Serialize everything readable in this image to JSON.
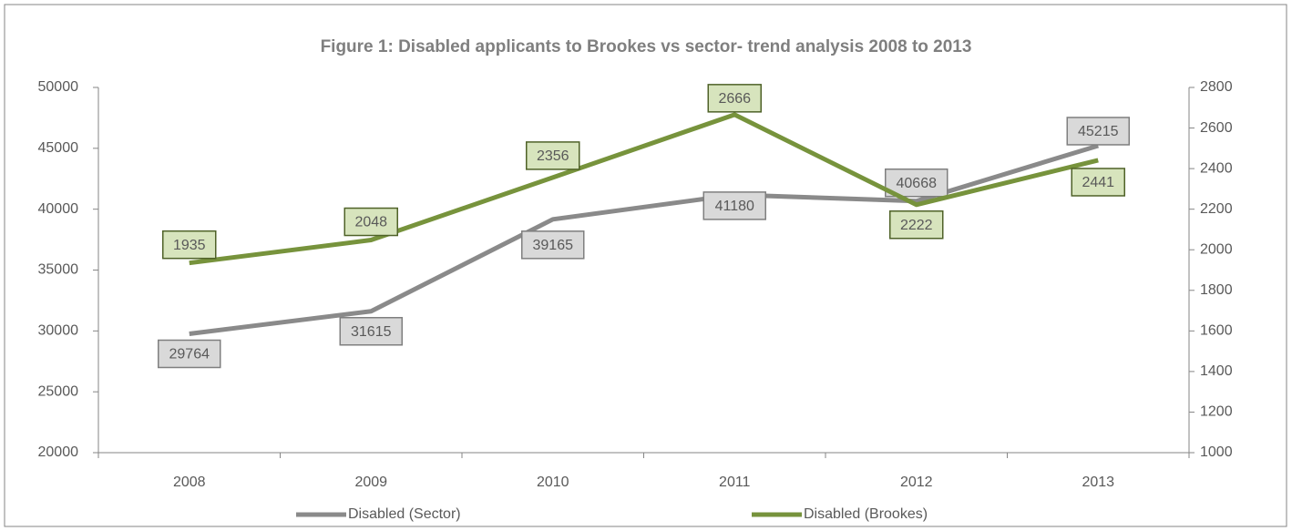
{
  "chart_data": {
    "type": "line",
    "title": "Figure 1: Disabled applicants to Brookes vs sector- trend analysis 2008 to 2013",
    "categories": [
      "2008",
      "2009",
      "2010",
      "2011",
      "2012",
      "2013"
    ],
    "series": [
      {
        "name": "Disabled (Sector)",
        "color": "#8a8a8a",
        "values": [
          29764,
          31615,
          39165,
          41180,
          40668,
          45215
        ]
      },
      {
        "name": "Disabled (Brookes)",
        "color": "#77933c",
        "axis": "y2",
        "values": [
          1935,
          2048,
          2356,
          2666,
          2222,
          2441
        ]
      }
    ],
    "ylim": [
      20000,
      50000
    ],
    "yticks": [
      20000,
      25000,
      30000,
      35000,
      40000,
      45000,
      50000
    ],
    "y2lim": [
      1000,
      2800
    ],
    "y2ticks": [
      1000,
      1200,
      1400,
      1600,
      1800,
      2000,
      2200,
      2400,
      2600,
      2800
    ],
    "grid": false,
    "legend": "bottom"
  }
}
